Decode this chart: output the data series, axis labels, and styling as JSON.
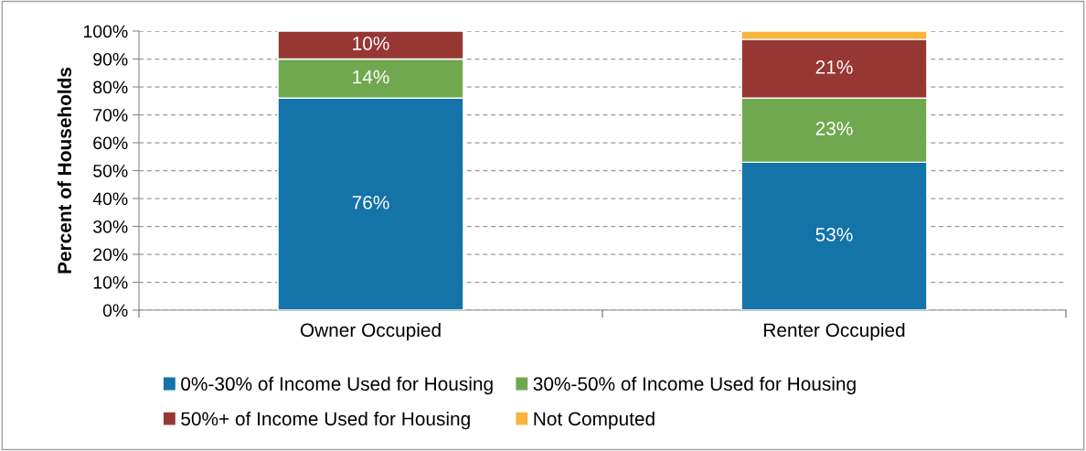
{
  "chart_data": {
    "type": "bar",
    "stacked": true,
    "ylabel": "Percent of Households",
    "categories": [
      "Owner Occupied",
      "Renter Occupied"
    ],
    "series": [
      {
        "name": "0%-30% of Income Used for Housing",
        "color": "#1473a9",
        "values": [
          76,
          53
        ],
        "value_labels": [
          "76%",
          "53%"
        ]
      },
      {
        "name": "30%-50% of Income Used for Housing",
        "color": "#70a84f",
        "values": [
          14,
          23
        ],
        "value_labels": [
          "14%",
          "23%"
        ]
      },
      {
        "name": "50%+ of Income Used for Housing",
        "color": "#973734",
        "values": [
          10,
          21
        ],
        "value_labels": [
          "10%",
          "21%"
        ]
      },
      {
        "name": "Not Computed",
        "color": "#f8b43c",
        "values": [
          null,
          3
        ],
        "value_labels": [
          null,
          null
        ]
      }
    ],
    "ylim": [
      0,
      100
    ],
    "yticks": [
      {
        "value": 0,
        "label": "0%"
      },
      {
        "value": 10,
        "label": "10%"
      },
      {
        "value": 20,
        "label": "20%"
      },
      {
        "value": 30,
        "label": "30%"
      },
      {
        "value": 40,
        "label": "40%"
      },
      {
        "value": 50,
        "label": "50%"
      },
      {
        "value": 60,
        "label": "60%"
      },
      {
        "value": 70,
        "label": "70%"
      },
      {
        "value": 80,
        "label": "80%"
      },
      {
        "value": 90,
        "label": "90%"
      },
      {
        "value": 100,
        "label": "100%"
      }
    ],
    "grid": "y",
    "legend": "bottom"
  }
}
